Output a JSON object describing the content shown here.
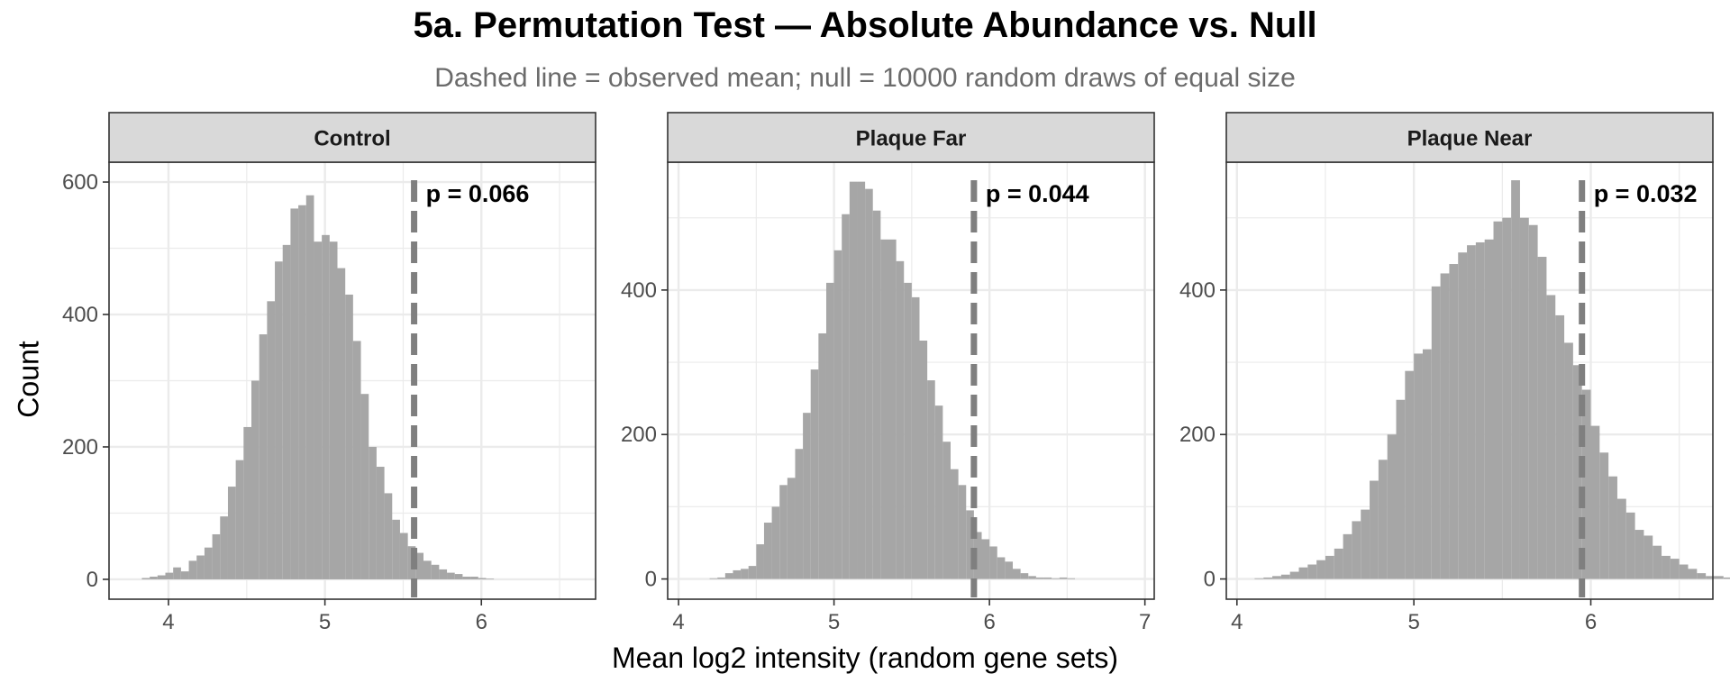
{
  "title": "5a. Permutation Test — Absolute Abundance vs. Null",
  "subtitle": "Dashed line = observed mean; null = 10000 random draws of equal size",
  "colors": {
    "bar": "#a6a6a6",
    "dashed_line": "#7f7f7f",
    "strip_bg": "#d9d9d9",
    "panel_border": "#333333",
    "grid": "#ebebeb"
  },
  "chart_data": {
    "type": "bar",
    "subtype": "faceted-histogram",
    "xlabel": "Mean log2 intensity (random gene sets)",
    "ylabel": "Count",
    "grid": true,
    "facet_scales": "free",
    "panels": [
      {
        "name": "Control",
        "p_label": "p = 0.066",
        "observed": 5.57,
        "xlim": [
          3.62,
          6.73
        ],
        "ylim": [
          -30,
          630
        ],
        "xticks": [
          4,
          5,
          6
        ],
        "yticks": [
          0,
          200,
          400,
          600
        ],
        "bin_width": 0.05,
        "bin_start": 3.83,
        "counts": [
          2,
          4,
          6,
          10,
          18,
          12,
          28,
          36,
          48,
          68,
          95,
          140,
          180,
          230,
          300,
          370,
          420,
          480,
          505,
          560,
          565,
          580,
          510,
          520,
          510,
          470,
          430,
          360,
          280,
          200,
          170,
          130,
          90,
          70,
          50,
          40,
          28,
          22,
          15,
          10,
          8,
          4,
          4,
          2,
          1
        ]
      },
      {
        "name": "Plaque Far",
        "p_label": "p = 0.044",
        "observed": 5.9,
        "xlim": [
          3.93,
          7.06
        ],
        "ylim": [
          -28,
          577
        ],
        "xticks": [
          4,
          5,
          6,
          7
        ],
        "yticks": [
          0,
          200,
          400
        ],
        "bin_width": 0.05,
        "bin_start": 4.2,
        "counts": [
          1,
          2,
          8,
          12,
          14,
          18,
          48,
          78,
          100,
          130,
          140,
          180,
          230,
          290,
          340,
          410,
          455,
          505,
          550,
          550,
          540,
          510,
          470,
          470,
          440,
          410,
          390,
          330,
          275,
          240,
          190,
          152,
          130,
          95,
          65,
          55,
          45,
          30,
          24,
          14,
          8,
          4,
          2,
          2,
          1,
          2,
          1
        ]
      },
      {
        "name": "Plaque Near",
        "p_label": "p = 0.032",
        "observed": 5.95,
        "xlim": [
          3.94,
          6.69
        ],
        "ylim": [
          -28,
          577
        ],
        "xticks": [
          4,
          5,
          6
        ],
        "yticks": [
          0,
          200,
          400
        ],
        "bin_width": 0.05,
        "bin_start": 4.1,
        "counts": [
          1,
          2,
          4,
          6,
          10,
          16,
          20,
          26,
          32,
          42,
          62,
          80,
          96,
          136,
          165,
          200,
          248,
          288,
          312,
          318,
          405,
          423,
          436,
          452,
          462,
          466,
          470,
          495,
          500,
          552,
          500,
          490,
          446,
          393,
          365,
          327,
          296,
          262,
          212,
          175,
          142,
          111,
          92,
          68,
          60,
          46,
          32,
          28,
          20,
          14,
          8,
          4,
          4,
          2,
          1,
          1,
          2
        ]
      }
    ]
  }
}
